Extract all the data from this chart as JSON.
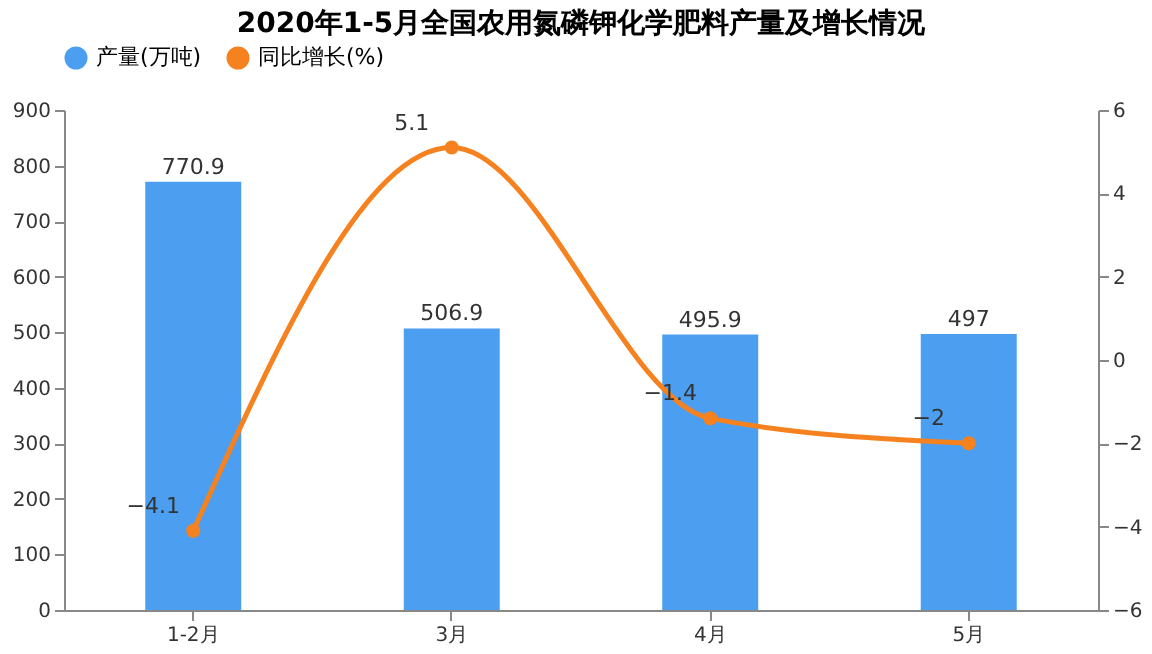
{
  "chart_data": {
    "type": "bar",
    "title": "2020年1-5月全国农用氮磷钾化学肥料产量及增长情况",
    "categories": [
      "1-2月",
      "3月",
      "4月",
      "5月"
    ],
    "series": [
      {
        "name": "产量(万吨)",
        "color": "#4c9ff0",
        "values": [
          770.9,
          506.9,
          495.9,
          497
        ]
      },
      {
        "name": "同比增长(%)",
        "type": "line",
        "axis": "y2",
        "color": "#f5821f",
        "values": [
          -4.1,
          5.1,
          -1.4,
          -2
        ]
      }
    ],
    "ylim": [
      0,
      900
    ],
    "yticks": [
      0,
      100,
      200,
      300,
      400,
      500,
      600,
      700,
      800,
      900
    ],
    "y2lim": [
      -6,
      6
    ],
    "y2ticks": [
      -6,
      -4,
      -2,
      0,
      2,
      4,
      6
    ],
    "data_labels": true,
    "legend": "top",
    "grid": false,
    "marker": "circle"
  }
}
